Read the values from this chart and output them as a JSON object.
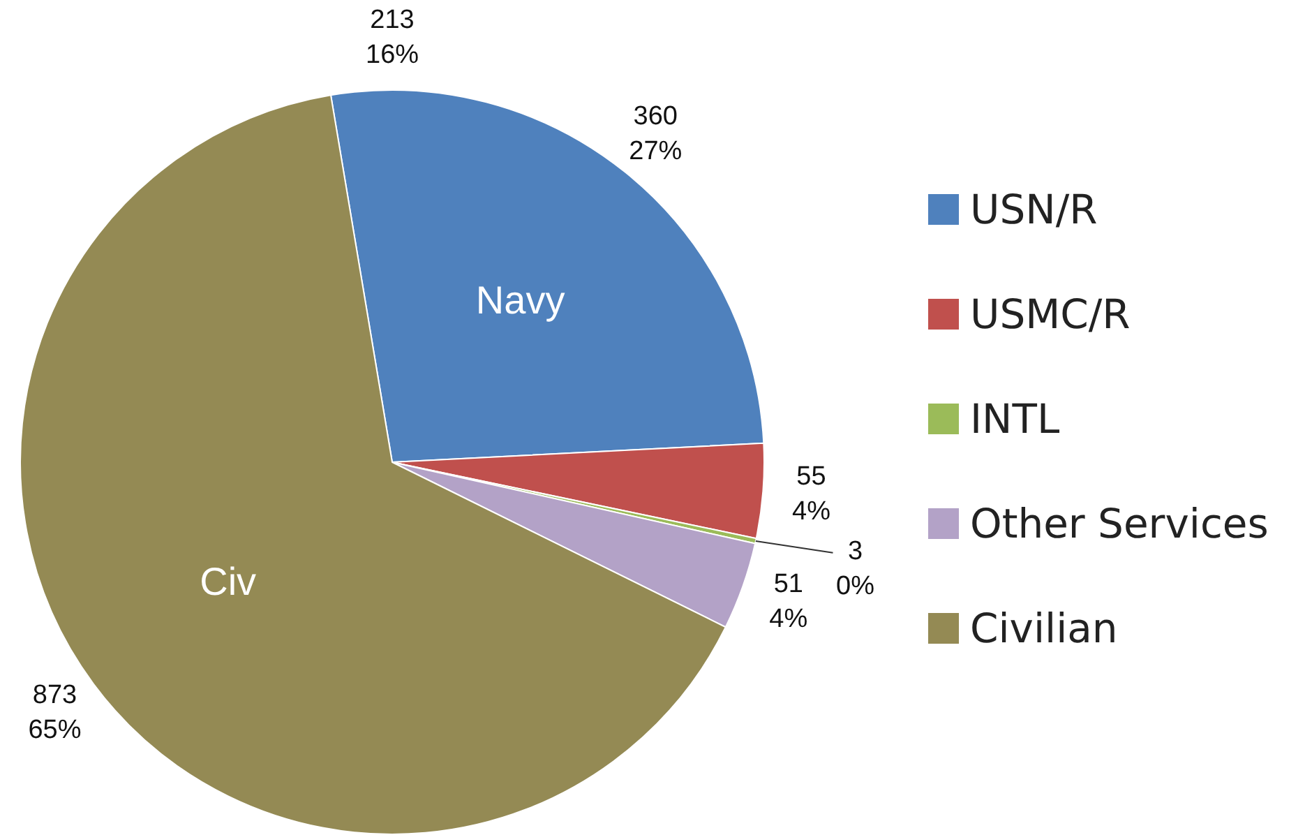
{
  "chart_data": {
    "type": "pie",
    "categories": [
      "USN/R",
      "USMC/R",
      "INTL",
      "Other Services",
      "Civilian"
    ],
    "values": [
      360,
      55,
      3,
      51,
      873
    ],
    "colors": [
      "#4f81bd",
      "#c0504d",
      "#9bbb59",
      "#b3a2c7",
      "#948a54"
    ],
    "value_labels": [
      "360\n27%",
      "55\n4%",
      "3\n0%",
      "51\n4%",
      "873\n65%"
    ],
    "legend": "right",
    "annotations": [
      {
        "text": "Navy",
        "x": "USN/R"
      },
      {
        "text": "Civ",
        "x": "Civilian"
      },
      "213\n16%"
    ]
  }
}
